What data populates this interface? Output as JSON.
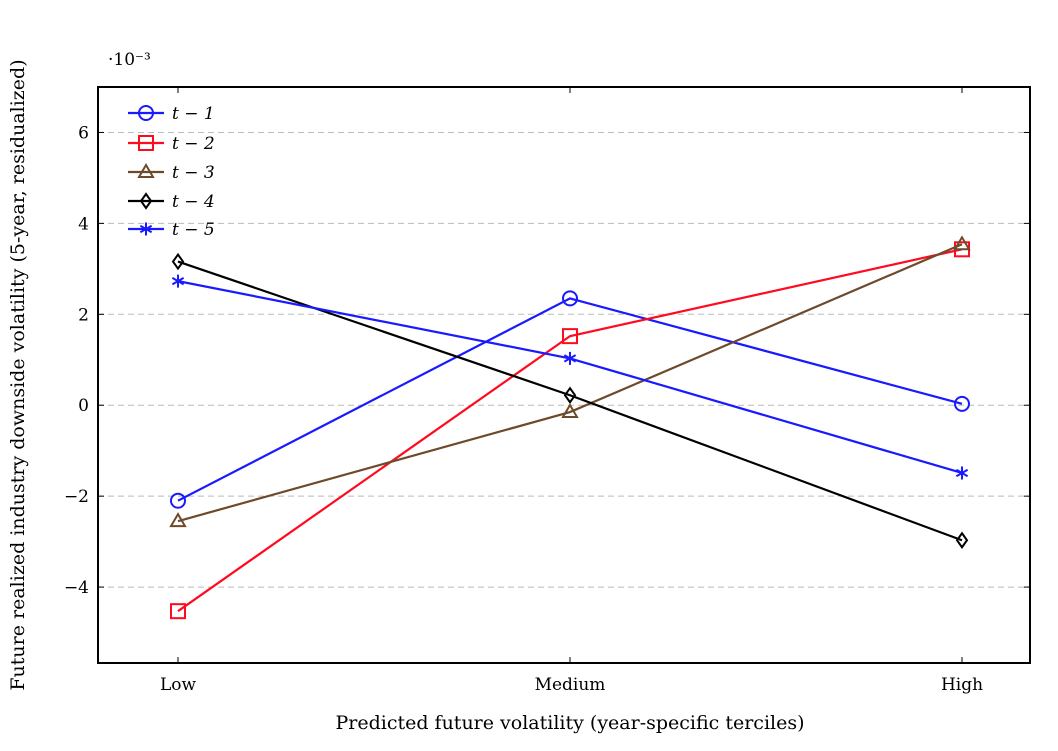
{
  "chart_data": {
    "type": "line",
    "title": "",
    "xlabel": "Predicted future volatility (year-specific terciles)",
    "ylabel": "Future realized industry downside volatility (5-year, residualized)",
    "y_scale_label": "·10⁻³",
    "categories": [
      "Low",
      "Medium",
      "High"
    ],
    "ylim": [
      -5.67,
      7
    ],
    "yticks": [
      -4,
      -2,
      0,
      2,
      4,
      6
    ],
    "ytick_labels": [
      "−4",
      "−2",
      "0",
      "2",
      "4",
      "6"
    ],
    "grid": "horizontal dashed",
    "legend_position": "top-left",
    "series": [
      {
        "name": "t − 1",
        "color": "#1a1aff",
        "marker": "circle",
        "values": [
          -2.1,
          2.35,
          0.03
        ]
      },
      {
        "name": "t − 2",
        "color": "#ff0a1e",
        "marker": "square",
        "values": [
          -4.53,
          1.52,
          3.43
        ]
      },
      {
        "name": "t − 3",
        "color": "#6e4a2a",
        "marker": "triangle",
        "values": [
          -2.55,
          -0.15,
          3.54
        ]
      },
      {
        "name": "t − 4",
        "color": "#000000",
        "marker": "diamond",
        "values": [
          3.16,
          0.22,
          -2.97
        ]
      },
      {
        "name": "t − 5",
        "color": "#1a1aff",
        "marker": "star",
        "values": [
          2.73,
          1.03,
          -1.49
        ]
      }
    ]
  }
}
